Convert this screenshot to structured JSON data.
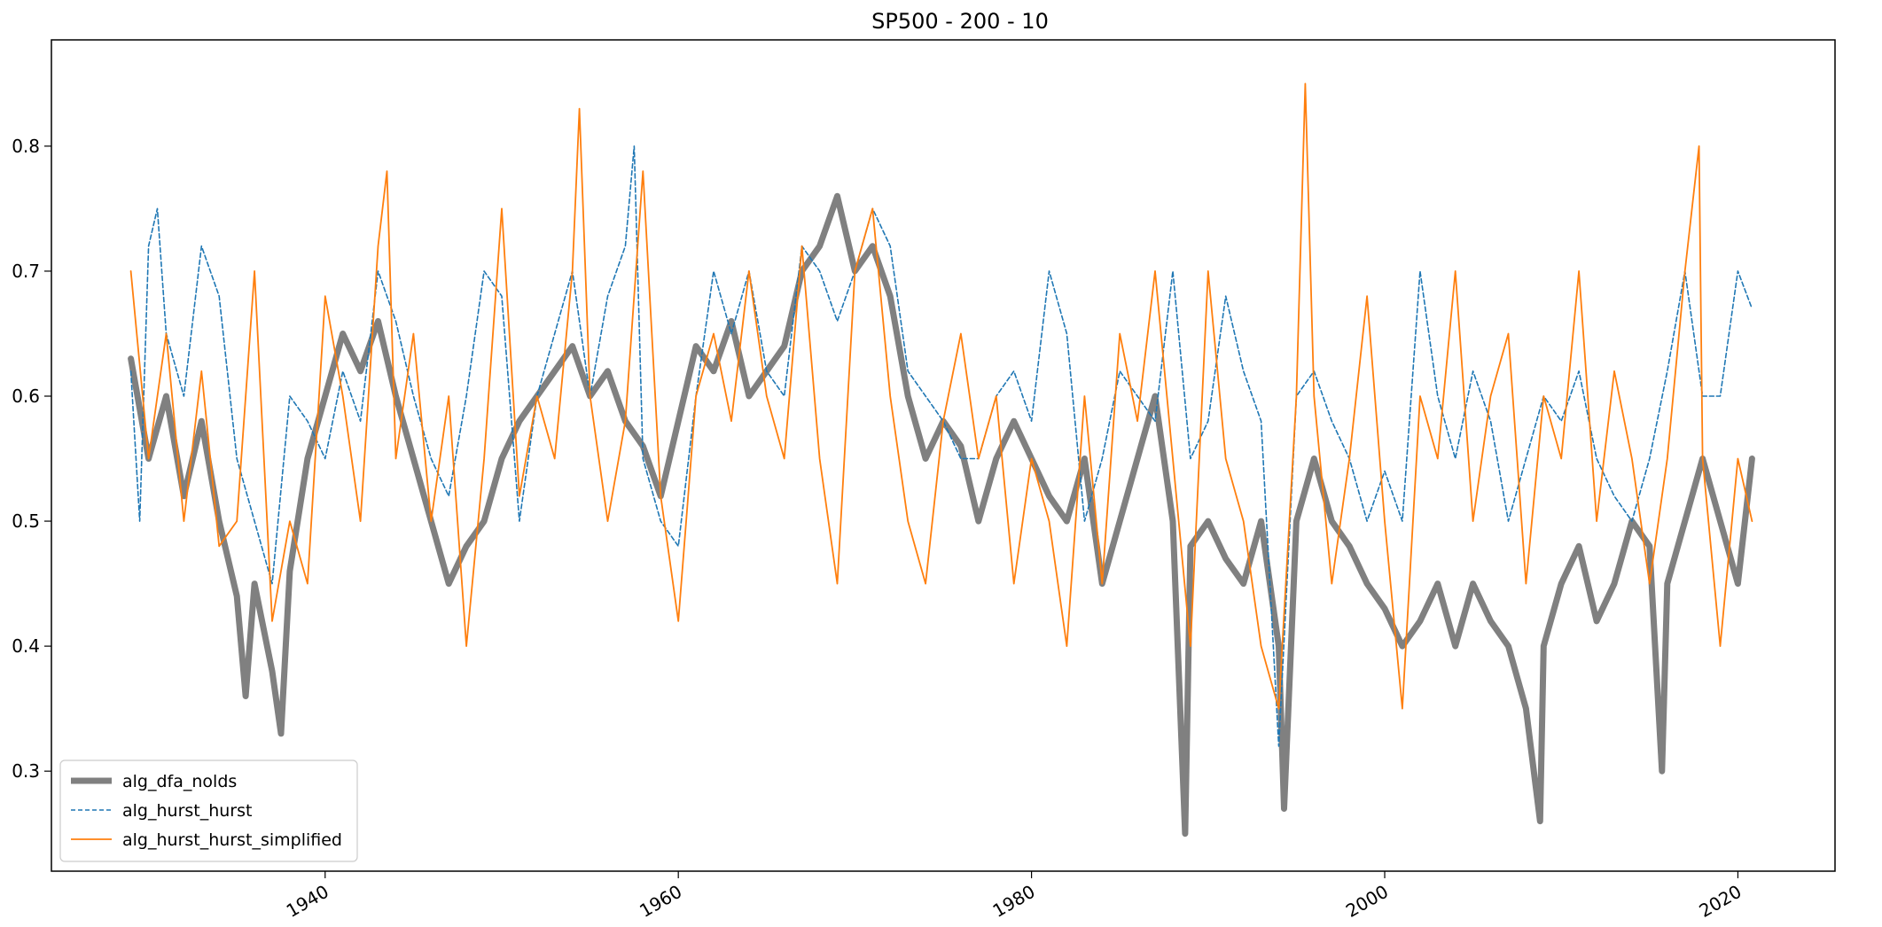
{
  "chart_data": {
    "type": "line",
    "title": "SP500 - 200 - 10",
    "xlabel": "",
    "ylabel": "",
    "xlim": [
      1924.5,
      2025.5
    ],
    "ylim": [
      0.22,
      0.885
    ],
    "x_ticks": [
      1940,
      1960,
      1980,
      2000,
      2020
    ],
    "x_tick_labels": [
      "1940",
      "1960",
      "1980",
      "2000",
      "2020"
    ],
    "y_ticks": [
      0.3,
      0.4,
      0.5,
      0.6,
      0.7,
      0.8
    ],
    "y_tick_labels": [
      "0.3",
      "0.4",
      "0.5",
      "0.6",
      "0.7",
      "0.8"
    ],
    "grid": false,
    "legend_position": "lower-left",
    "series": [
      {
        "name": "alg_dfa_nolds",
        "color": "#808080",
        "style": "solid-thick",
        "x": [
          1929.0,
          1930.0,
          1931.0,
          1932.0,
          1933.0,
          1934.0,
          1935.0,
          1935.5,
          1936.0,
          1937.0,
          1937.5,
          1938.0,
          1939.0,
          1940.0,
          1941.0,
          1942.0,
          1943.0,
          1944.0,
          1945.0,
          1946.0,
          1947.0,
          1948.0,
          1949.0,
          1950.0,
          1951.0,
          1952.0,
          1953.0,
          1954.0,
          1955.0,
          1956.0,
          1957.0,
          1958.0,
          1959.0,
          1960.0,
          1961.0,
          1962.0,
          1963.0,
          1964.0,
          1965.0,
          1966.0,
          1967.0,
          1968.0,
          1969.0,
          1970.0,
          1971.0,
          1972.0,
          1973.0,
          1974.0,
          1975.0,
          1976.0,
          1977.0,
          1978.0,
          1979.0,
          1980.0,
          1981.0,
          1982.0,
          1983.0,
          1984.0,
          1985.0,
          1986.0,
          1987.0,
          1988.0,
          1988.7,
          1989.0,
          1990.0,
          1991.0,
          1992.0,
          1993.0,
          1994.0,
          1994.3,
          1995.0,
          1996.0,
          1997.0,
          1998.0,
          1999.0,
          2000.0,
          2001.0,
          2002.0,
          2003.0,
          2004.0,
          2005.0,
          2006.0,
          2007.0,
          2008.0,
          2008.8,
          2009.0,
          2010.0,
          2011.0,
          2012.0,
          2013.0,
          2014.0,
          2015.0,
          2015.7,
          2016.0,
          2017.0,
          2018.0,
          2019.0,
          2020.0,
          2020.8
        ],
        "y": [
          0.63,
          0.55,
          0.6,
          0.52,
          0.58,
          0.5,
          0.44,
          0.36,
          0.45,
          0.38,
          0.33,
          0.46,
          0.55,
          0.6,
          0.65,
          0.62,
          0.66,
          0.6,
          0.55,
          0.5,
          0.45,
          0.48,
          0.5,
          0.55,
          0.58,
          0.6,
          0.62,
          0.64,
          0.6,
          0.62,
          0.58,
          0.56,
          0.52,
          0.58,
          0.64,
          0.62,
          0.66,
          0.6,
          0.62,
          0.64,
          0.7,
          0.72,
          0.76,
          0.7,
          0.72,
          0.68,
          0.6,
          0.55,
          0.58,
          0.56,
          0.5,
          0.55,
          0.58,
          0.55,
          0.52,
          0.5,
          0.55,
          0.45,
          0.5,
          0.55,
          0.6,
          0.5,
          0.25,
          0.48,
          0.5,
          0.47,
          0.45,
          0.5,
          0.4,
          0.27,
          0.5,
          0.55,
          0.5,
          0.48,
          0.45,
          0.43,
          0.4,
          0.42,
          0.45,
          0.4,
          0.45,
          0.42,
          0.4,
          0.35,
          0.26,
          0.4,
          0.45,
          0.48,
          0.42,
          0.45,
          0.5,
          0.48,
          0.3,
          0.45,
          0.5,
          0.55,
          0.5,
          0.45,
          0.55
        ]
      },
      {
        "name": "alg_hurst_hurst",
        "color": "#1f77b4",
        "style": "dashed",
        "x": [
          1929.0,
          1929.5,
          1930.0,
          1930.5,
          1931.0,
          1932.0,
          1933.0,
          1934.0,
          1935.0,
          1936.0,
          1937.0,
          1938.0,
          1939.0,
          1940.0,
          1941.0,
          1942.0,
          1943.0,
          1944.0,
          1945.0,
          1946.0,
          1947.0,
          1948.0,
          1949.0,
          1950.0,
          1951.0,
          1952.0,
          1953.0,
          1954.0,
          1955.0,
          1956.0,
          1957.0,
          1957.5,
          1958.0,
          1959.0,
          1960.0,
          1961.0,
          1962.0,
          1963.0,
          1964.0,
          1965.0,
          1966.0,
          1967.0,
          1968.0,
          1969.0,
          1970.0,
          1971.0,
          1972.0,
          1973.0,
          1974.0,
          1975.0,
          1976.0,
          1977.0,
          1978.0,
          1979.0,
          1980.0,
          1981.0,
          1982.0,
          1983.0,
          1984.0,
          1985.0,
          1986.0,
          1987.0,
          1988.0,
          1989.0,
          1990.0,
          1991.0,
          1992.0,
          1993.0,
          1994.0,
          1995.0,
          1996.0,
          1997.0,
          1998.0,
          1999.0,
          2000.0,
          2001.0,
          2002.0,
          2003.0,
          2004.0,
          2005.0,
          2006.0,
          2007.0,
          2008.0,
          2009.0,
          2010.0,
          2011.0,
          2012.0,
          2013.0,
          2014.0,
          2015.0,
          2016.0,
          2017.0,
          2018.0,
          2019.0,
          2020.0,
          2020.8
        ],
        "y": [
          0.62,
          0.5,
          0.72,
          0.75,
          0.65,
          0.6,
          0.72,
          0.68,
          0.55,
          0.5,
          0.45,
          0.6,
          0.58,
          0.55,
          0.62,
          0.58,
          0.7,
          0.66,
          0.6,
          0.55,
          0.52,
          0.6,
          0.7,
          0.68,
          0.5,
          0.6,
          0.65,
          0.7,
          0.6,
          0.68,
          0.72,
          0.8,
          0.55,
          0.5,
          0.48,
          0.6,
          0.7,
          0.65,
          0.7,
          0.62,
          0.6,
          0.72,
          0.7,
          0.66,
          0.7,
          0.75,
          0.72,
          0.62,
          0.6,
          0.58,
          0.55,
          0.55,
          0.6,
          0.62,
          0.58,
          0.7,
          0.65,
          0.5,
          0.55,
          0.62,
          0.6,
          0.58,
          0.7,
          0.55,
          0.58,
          0.68,
          0.62,
          0.58,
          0.32,
          0.6,
          0.62,
          0.58,
          0.55,
          0.5,
          0.54,
          0.5,
          0.7,
          0.6,
          0.55,
          0.62,
          0.58,
          0.5,
          0.55,
          0.6,
          0.58,
          0.62,
          0.55,
          0.52,
          0.5,
          0.55,
          0.62,
          0.7,
          0.6,
          0.6,
          0.7,
          0.67
        ]
      },
      {
        "name": "alg_hurst_hurst_simplified",
        "color": "#ff7f0e",
        "style": "solid-thin",
        "x": [
          1929.0,
          1930.0,
          1931.0,
          1932.0,
          1933.0,
          1934.0,
          1935.0,
          1936.0,
          1937.0,
          1938.0,
          1939.0,
          1940.0,
          1941.0,
          1942.0,
          1943.0,
          1943.5,
          1944.0,
          1945.0,
          1946.0,
          1947.0,
          1948.0,
          1949.0,
          1950.0,
          1951.0,
          1952.0,
          1953.0,
          1954.0,
          1954.4,
          1955.0,
          1956.0,
          1957.0,
          1958.0,
          1959.0,
          1960.0,
          1961.0,
          1962.0,
          1963.0,
          1964.0,
          1965.0,
          1966.0,
          1967.0,
          1968.0,
          1969.0,
          1970.0,
          1971.0,
          1972.0,
          1973.0,
          1974.0,
          1975.0,
          1976.0,
          1977.0,
          1978.0,
          1979.0,
          1980.0,
          1981.0,
          1982.0,
          1983.0,
          1984.0,
          1985.0,
          1986.0,
          1987.0,
          1988.0,
          1989.0,
          1990.0,
          1991.0,
          1992.0,
          1993.0,
          1994.0,
          1995.0,
          1995.5,
          1996.0,
          1997.0,
          1998.0,
          1999.0,
          2000.0,
          2001.0,
          2002.0,
          2003.0,
          2004.0,
          2005.0,
          2006.0,
          2007.0,
          2008.0,
          2009.0,
          2010.0,
          2011.0,
          2012.0,
          2013.0,
          2014.0,
          2015.0,
          2016.0,
          2017.0,
          2017.8,
          2018.0,
          2019.0,
          2020.0,
          2020.8
        ],
        "y": [
          0.7,
          0.55,
          0.65,
          0.5,
          0.62,
          0.48,
          0.5,
          0.7,
          0.42,
          0.5,
          0.45,
          0.68,
          0.6,
          0.5,
          0.72,
          0.78,
          0.55,
          0.65,
          0.5,
          0.6,
          0.4,
          0.55,
          0.75,
          0.52,
          0.6,
          0.55,
          0.7,
          0.83,
          0.6,
          0.5,
          0.58,
          0.78,
          0.52,
          0.42,
          0.6,
          0.65,
          0.58,
          0.7,
          0.6,
          0.55,
          0.72,
          0.55,
          0.45,
          0.7,
          0.75,
          0.6,
          0.5,
          0.45,
          0.58,
          0.65,
          0.55,
          0.6,
          0.45,
          0.55,
          0.5,
          0.4,
          0.6,
          0.45,
          0.65,
          0.58,
          0.7,
          0.55,
          0.4,
          0.7,
          0.55,
          0.5,
          0.4,
          0.35,
          0.6,
          0.85,
          0.6,
          0.45,
          0.55,
          0.68,
          0.5,
          0.35,
          0.6,
          0.55,
          0.7,
          0.5,
          0.6,
          0.65,
          0.45,
          0.6,
          0.55,
          0.7,
          0.5,
          0.62,
          0.55,
          0.45,
          0.55,
          0.7,
          0.8,
          0.55,
          0.4,
          0.55,
          0.5
        ]
      }
    ]
  }
}
